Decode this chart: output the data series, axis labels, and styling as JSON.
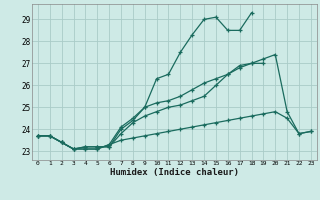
{
  "xlabel": "Humidex (Indice chaleur)",
  "bg_color": "#ceeae6",
  "grid_color": "#aaccc8",
  "line_color": "#1a6b5e",
  "x_ticks": [
    0,
    1,
    2,
    3,
    4,
    5,
    6,
    7,
    8,
    9,
    10,
    11,
    12,
    13,
    14,
    15,
    16,
    17,
    18,
    19,
    20,
    21,
    22,
    23
  ],
  "y_ticks": [
    23,
    24,
    25,
    26,
    27,
    28,
    29
  ],
  "xlim": [
    -0.5,
    23.5
  ],
  "ylim": [
    22.6,
    29.7
  ],
  "series": [
    [
      23.7,
      23.7,
      23.4,
      23.1,
      23.2,
      23.2,
      23.2,
      23.8,
      24.3,
      24.6,
      24.8,
      25.0,
      25.1,
      25.3,
      25.5,
      26.0,
      26.5,
      26.9,
      27.0,
      27.2,
      27.4,
      24.8,
      23.8,
      23.9
    ],
    [
      23.7,
      23.7,
      23.4,
      23.1,
      23.2,
      23.2,
      23.2,
      24.0,
      24.4,
      25.0,
      26.3,
      26.5,
      27.5,
      28.3,
      29.0,
      29.1,
      28.5,
      28.5,
      29.3,
      null,
      null,
      null,
      null,
      null
    ],
    [
      23.7,
      23.7,
      23.4,
      23.1,
      23.1,
      23.1,
      23.3,
      24.1,
      24.5,
      25.0,
      25.2,
      25.3,
      25.5,
      25.8,
      26.1,
      26.3,
      26.5,
      26.8,
      27.0,
      27.0,
      null,
      null,
      null,
      null
    ],
    [
      23.7,
      23.7,
      23.4,
      23.1,
      23.1,
      23.1,
      23.3,
      23.5,
      23.6,
      23.7,
      23.8,
      23.9,
      24.0,
      24.1,
      24.2,
      24.3,
      24.4,
      24.5,
      24.6,
      24.7,
      24.8,
      24.5,
      23.8,
      23.9
    ]
  ]
}
